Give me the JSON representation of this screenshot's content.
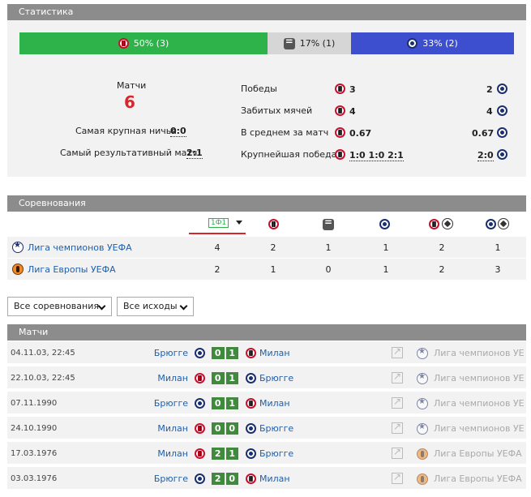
{
  "stats": {
    "header": "Статистика",
    "bar": {
      "milan": "50% (3)",
      "draw": "17% (1)",
      "brugge": "33% (2)"
    },
    "matches_label": "Матчи",
    "matches_count": "6",
    "biggest_draw_label": "Самая крупная ничья:",
    "biggest_draw_value": "0:0",
    "most_goals_label": "Самый результативный матч:",
    "most_goals_value": "2:1",
    "rows": [
      {
        "label": "Победы",
        "milan": "3",
        "brugge": "2"
      },
      {
        "label": "Забитых мячей",
        "milan": "4",
        "brugge": "4"
      },
      {
        "label": "В среднем за матч",
        "milan": "0.67",
        "brugge": "0.67"
      },
      {
        "label": "Крупнейшая победа",
        "milan": "1:0 1:0 2:1",
        "brugge": "2:0"
      }
    ]
  },
  "competitions": {
    "header": "Соревнования",
    "sort_tab": "1Ф1",
    "rows": [
      {
        "name": "Лига чемпионов УЕФА",
        "icon": "ucl-icon",
        "values": [
          "4",
          "2",
          "1",
          "1",
          "2",
          "1"
        ]
      },
      {
        "name": "Лига Европы УЕФА",
        "icon": "uel-icon",
        "values": [
          "2",
          "1",
          "0",
          "1",
          "2",
          "3"
        ]
      }
    ]
  },
  "filters": {
    "competition": "Все соревнования",
    "outcome": "Все исходы"
  },
  "matches": {
    "header": "Матчи",
    "rows": [
      {
        "date": "04.11.03, 22:45",
        "home": "Брюгге",
        "home_team": "brugge",
        "score": [
          "0",
          "1"
        ],
        "away": "Милан",
        "away_team": "milan",
        "competition": "Лига чемпионов УЕФА",
        "comp_icon": "ucl"
      },
      {
        "date": "22.10.03, 22:45",
        "home": "Милан",
        "home_team": "milan",
        "score": [
          "0",
          "1"
        ],
        "away": "Брюгге",
        "away_team": "brugge",
        "competition": "Лига чемпионов УЕФА",
        "comp_icon": "ucl"
      },
      {
        "date": "07.11.1990",
        "home": "Брюгге",
        "home_team": "brugge",
        "score": [
          "0",
          "1"
        ],
        "away": "Милан",
        "away_team": "milan",
        "competition": "Лига чемпионов УЕФА",
        "comp_icon": "ucl"
      },
      {
        "date": "24.10.1990",
        "home": "Милан",
        "home_team": "milan",
        "score": [
          "0",
          "0"
        ],
        "away": "Брюгге",
        "away_team": "brugge",
        "competition": "Лига чемпионов УЕФА",
        "comp_icon": "ucl"
      },
      {
        "date": "17.03.1976",
        "home": "Милан",
        "home_team": "milan",
        "score": [
          "2",
          "1"
        ],
        "away": "Брюгге",
        "away_team": "brugge",
        "competition": "Лига Европы УЕФА",
        "comp_icon": "uel"
      },
      {
        "date": "03.03.1976",
        "home": "Брюгге",
        "home_team": "brugge",
        "score": [
          "2",
          "0"
        ],
        "away": "Милан",
        "away_team": "milan",
        "competition": "Лига Европы УЕФА",
        "comp_icon": "uel"
      }
    ]
  },
  "colors": {
    "milan_win": "#2db34a",
    "draw": "#d6d6d6",
    "brugge_win": "#3d4fcf",
    "score_box": "#3f8a3c",
    "highlight": "#d8262a"
  }
}
